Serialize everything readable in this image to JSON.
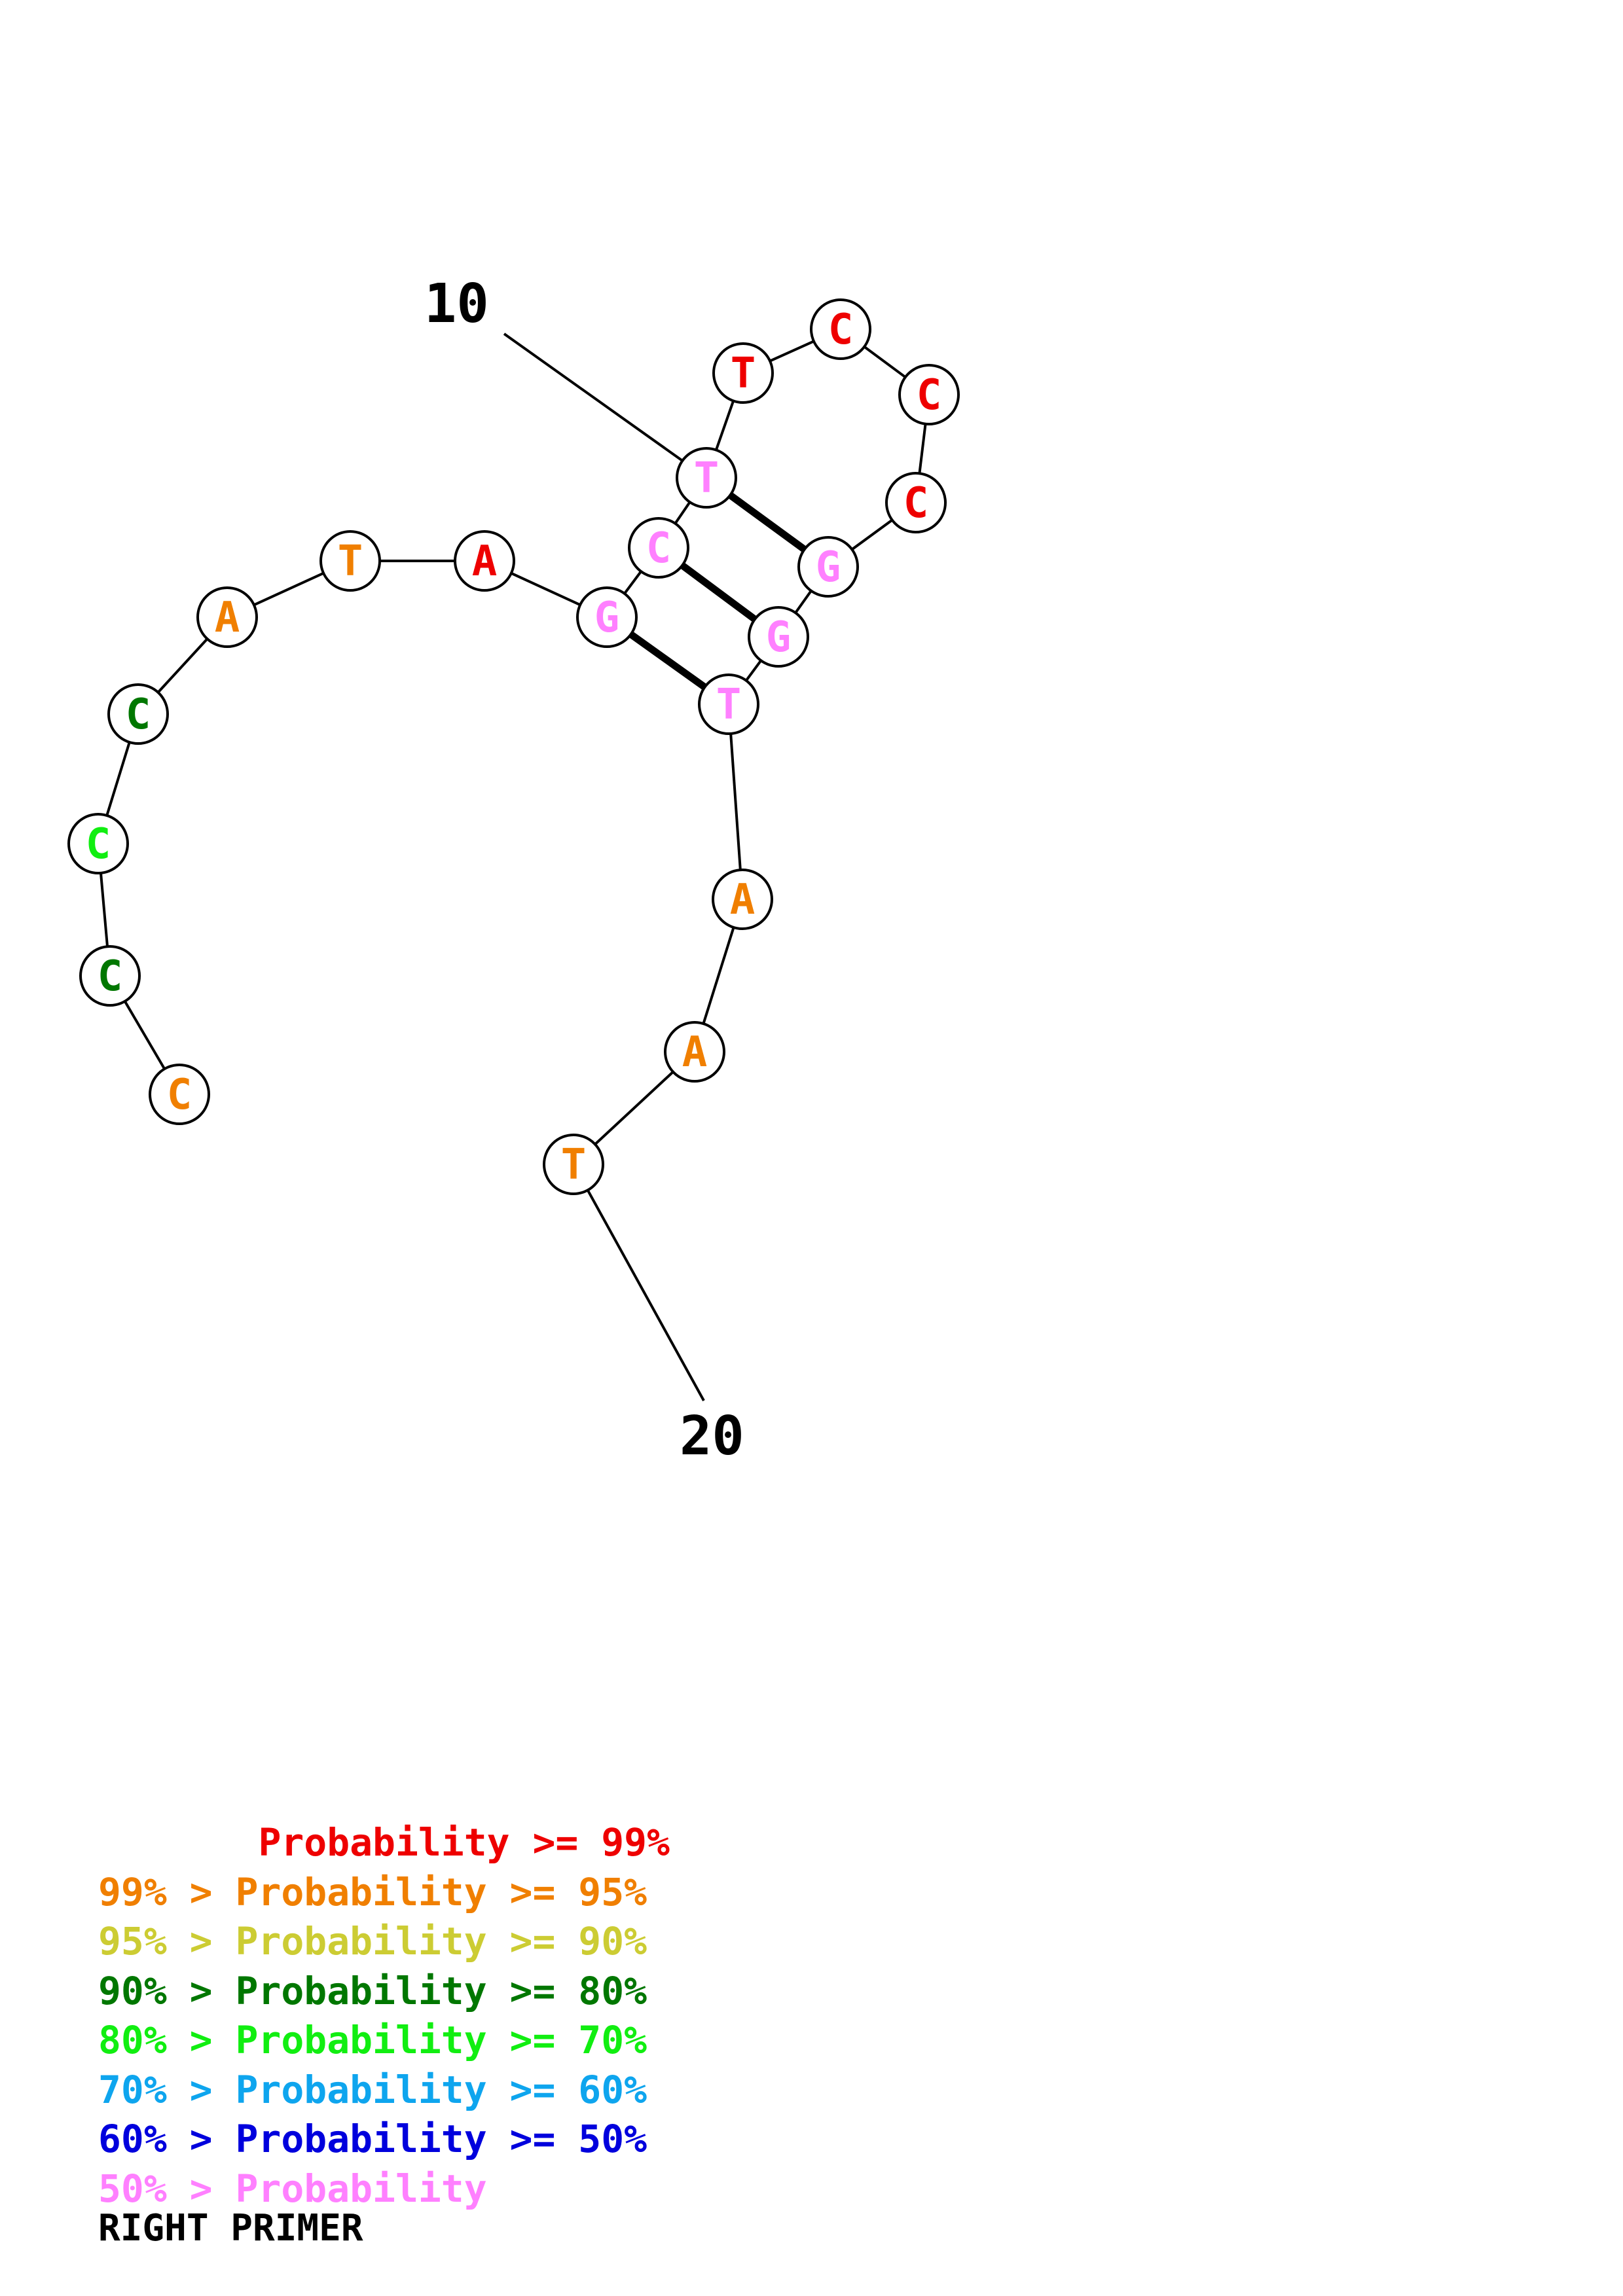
{
  "colors": {
    "p99": "#ee0000",
    "p95": "#f07f00",
    "p90": "#cccc33",
    "p80": "#007700",
    "p70": "#11ee11",
    "p60": "#0ea5ee",
    "p50": "#0000dd",
    "plow": "#ff80ff"
  },
  "nucleotides": [
    {
      "base": "C",
      "level": "p95"
    },
    {
      "base": "C",
      "level": "p80"
    },
    {
      "base": "C",
      "level": "p70"
    },
    {
      "base": "C",
      "level": "p80"
    },
    {
      "base": "A",
      "level": "p95"
    },
    {
      "base": "T",
      "level": "p95"
    },
    {
      "base": "A",
      "level": "p99"
    },
    {
      "base": "G",
      "level": "plow"
    },
    {
      "base": "C",
      "level": "plow"
    },
    {
      "base": "T",
      "level": "plow"
    },
    {
      "base": "T",
      "level": "p99"
    },
    {
      "base": "C",
      "level": "p99"
    },
    {
      "base": "C",
      "level": "p99"
    },
    {
      "base": "C",
      "level": "p99"
    },
    {
      "base": "G",
      "level": "plow"
    },
    {
      "base": "G",
      "level": "plow"
    },
    {
      "base": "T",
      "level": "plow"
    },
    {
      "base": "A",
      "level": "p95"
    },
    {
      "base": "A",
      "level": "p95"
    },
    {
      "base": "T",
      "level": "p95"
    }
  ],
  "pairs": [
    [
      8,
      17
    ],
    [
      9,
      16
    ],
    [
      10,
      15
    ]
  ],
  "position_labels": [
    {
      "text": "10",
      "index": 10
    },
    {
      "text": "20",
      "index": 20
    }
  ],
  "legend": [
    {
      "prefix": "       ",
      "text": "Probability >= 99%",
      "level": "p99"
    },
    {
      "prefix": "99% > ",
      "text": "Probability >= 95%",
      "level": "p95"
    },
    {
      "prefix": "95% > ",
      "text": "Probability >= 90%",
      "level": "p90"
    },
    {
      "prefix": "90% > ",
      "text": "Probability >= 80%",
      "level": "p80"
    },
    {
      "prefix": "80% > ",
      "text": "Probability >= 70%",
      "level": "p70"
    },
    {
      "prefix": "70% > ",
      "text": "Probability >= 60%",
      "level": "p60"
    },
    {
      "prefix": "60% > ",
      "text": "Probability >= 50%",
      "level": "p50"
    },
    {
      "prefix": "50% > ",
      "text": "Probability",
      "level": "plow"
    }
  ],
  "primer_label": "RIGHT PRIMER"
}
